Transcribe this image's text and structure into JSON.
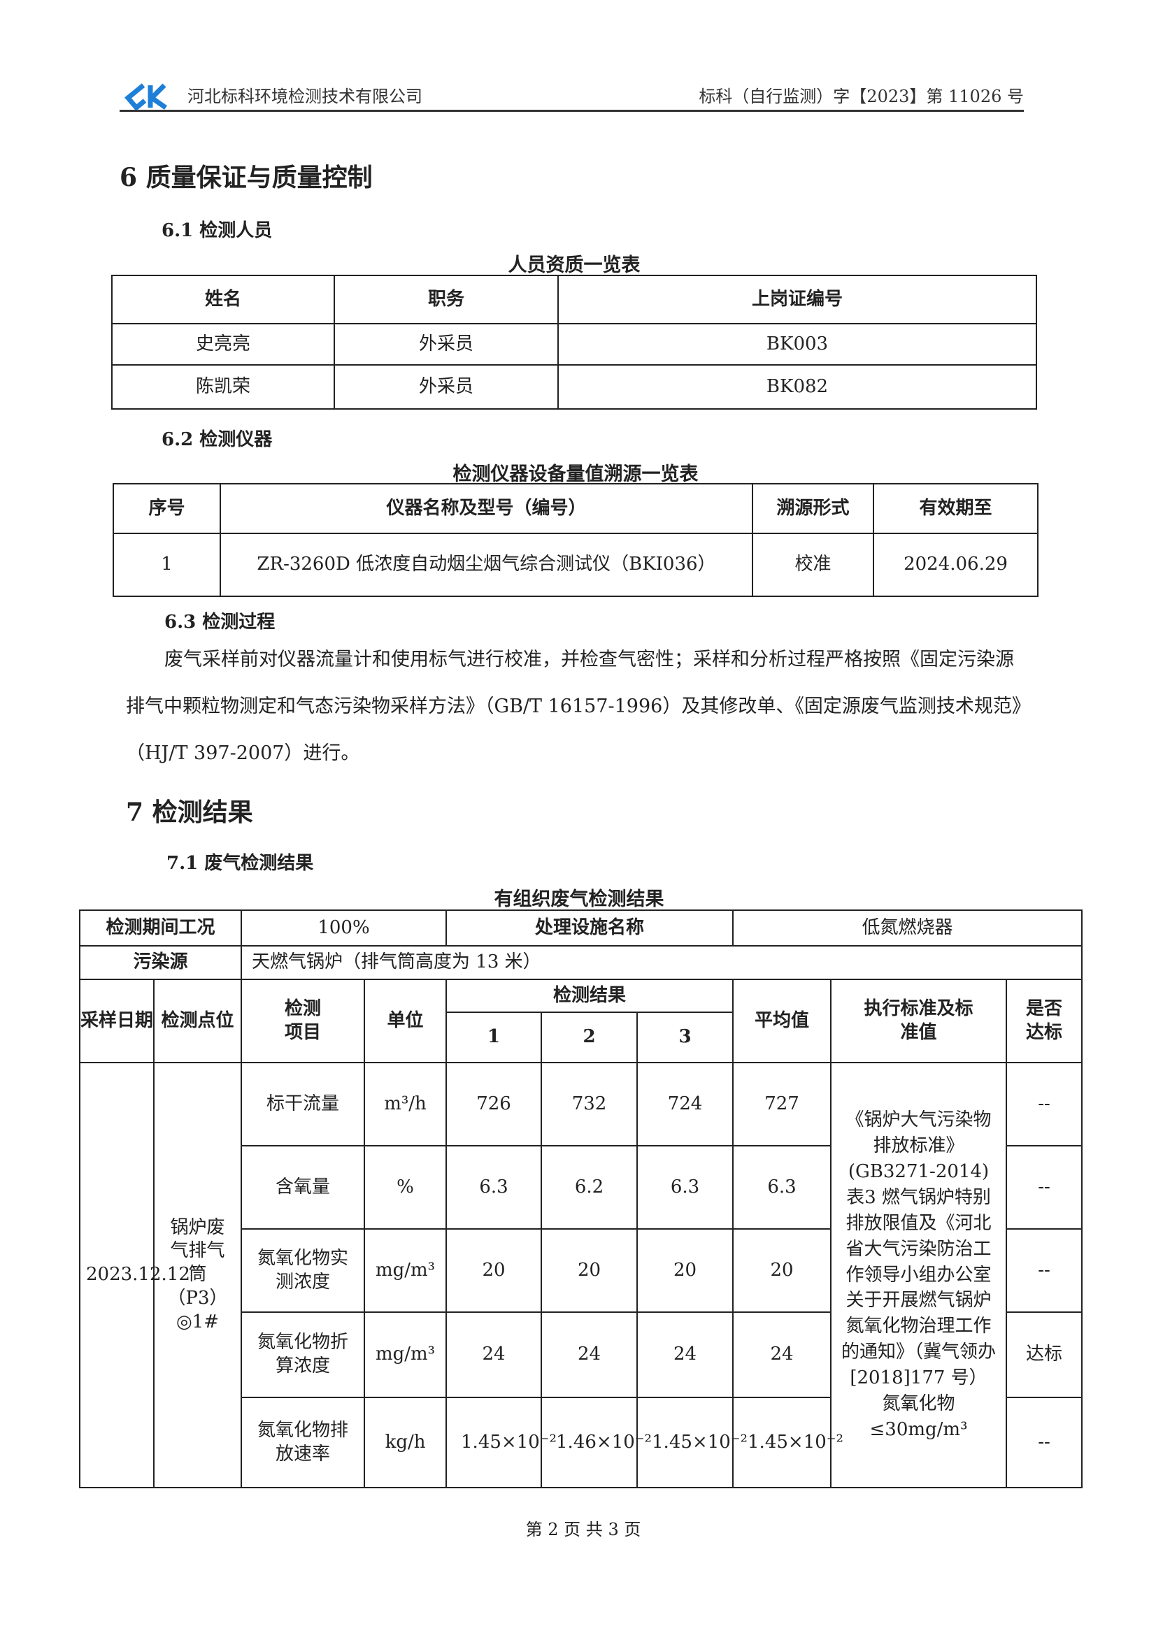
{
  "header": {
    "company": "河北标科环境检测技术有限公司",
    "doc_no": "标科（自行监测）字【2023】第 11026 号",
    "logo_color": "#1e7fd8"
  },
  "s6": {
    "title": "6 质量保证与质量控制",
    "s61": "6.1 检测人员",
    "t1_title": "人员资质一览表",
    "t1_head": [
      "姓名",
      "职务",
      "上岗证编号"
    ],
    "t1_rows": [
      [
        "史亮亮",
        "外采员",
        "BK003"
      ],
      [
        "陈凯荣",
        "外采员",
        "BK082"
      ]
    ],
    "s62": "6.2 检测仪器",
    "t2_title": "检测仪器设备量值溯源一览表",
    "t2_head": [
      "序号",
      "仪器名称及型号（编号）",
      "溯源形式",
      "有效期至"
    ],
    "t2_rows": [
      [
        "1",
        "ZR-3260D 低浓度自动烟尘烟气综合测试仪（BKI036）",
        "校准",
        "2024.06.29"
      ]
    ],
    "s63": "6.3 检测过程",
    "para": "废气采样前对仪器流量计和使用标气进行校准，并检查气密性；采样和分析过程严格按照《固定污染源排气中颗粒物测定和气态污染物采样方法》（GB/T 16157-1996）及其修改单、《固定源废气监测技术规范》（HJ/T 397-2007）进行。"
  },
  "s7": {
    "title": "7 检测结果",
    "s71": "7.1 废气检测结果",
    "t3_title": "有组织废气检测结果",
    "cond_label": "检测期间工况",
    "cond_value": "100%",
    "facility_label": "处理设施名称",
    "facility_value": "低氮燃烧器",
    "source_label": "污染源",
    "source_value": "天燃气锅炉（排气筒高度为 13 米）",
    "head": {
      "date": "采样日期",
      "point": "检测点位",
      "item": "检测项目",
      "unit": "单位",
      "results": "检测结果",
      "r1": "1",
      "r2": "2",
      "r3": "3",
      "avg": "平均值",
      "std": "执行标准及标准值",
      "ok": "是否达标"
    },
    "date": "2023.12.12",
    "point": "锅炉废气排气筒（P3）◎1#",
    "standard": "《锅炉大气污染物排放标准》(GB3271-2014)表3 燃气锅炉特别排放限值及《河北省大气污染防治工作领导小组办公室关于开展燃气锅炉氮氧化物治理工作的通知》（冀气领办[2018]177 号）氮氧化物≤30mg/m³",
    "rows": [
      {
        "item": "标干流量",
        "unit": "m³/h",
        "v1": "726",
        "v2": "732",
        "v3": "724",
        "avg": "727",
        "ok": "--"
      },
      {
        "item": "含氧量",
        "unit": "%",
        "v1": "6.3",
        "v2": "6.2",
        "v3": "6.3",
        "avg": "6.3",
        "ok": "--"
      },
      {
        "item": "氮氧化物实测浓度",
        "unit": "mg/m³",
        "v1": "20",
        "v2": "20",
        "v3": "20",
        "avg": "20",
        "ok": "--"
      },
      {
        "item": "氮氧化物折算浓度",
        "unit": "mg/m³",
        "v1": "24",
        "v2": "24",
        "v3": "24",
        "avg": "24",
        "ok": "达标"
      },
      {
        "item": "氮氧化物排放速率",
        "unit": "kg/h",
        "v1": "1.45×10⁻²",
        "v2": "1.46×10⁻²",
        "v3": "1.45×10⁻²",
        "avg": "1.45×10⁻²",
        "ok": "--"
      }
    ]
  },
  "footer": "第 2 页 共 3 页"
}
